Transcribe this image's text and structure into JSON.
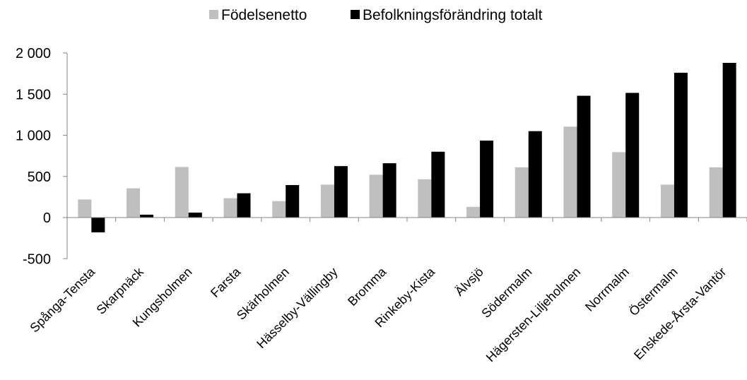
{
  "chart_data": {
    "type": "bar",
    "categories": [
      "Spånga-Tensta",
      "Skarpnäck",
      "Kungsholmen",
      "Farsta",
      "Skärholmen",
      "Hässelby-Vällingby",
      "Bromma",
      "Rinkeby-Kista",
      "Älvsjö",
      "Södermalm",
      "Hägersten-Liljeholmen",
      "Norrmalm",
      "Östermalm",
      "Enskede-Årsta-Vantör"
    ],
    "series": [
      {
        "name": "Födelsenetto",
        "color": "#bfbfbf",
        "values": [
          220,
          355,
          615,
          235,
          200,
          400,
          520,
          465,
          130,
          610,
          1105,
          795,
          400,
          610
        ]
      },
      {
        "name": "Befolkningsförändring totalt",
        "color": "#000000",
        "values": [
          -180,
          35,
          60,
          295,
          395,
          625,
          660,
          800,
          935,
          1050,
          1480,
          1515,
          1760,
          1880
        ]
      }
    ],
    "yaxis": {
      "ticks": [
        "2 000",
        "1 500",
        "1 000",
        "500",
        "0",
        "-500"
      ],
      "tick_values": [
        2000,
        1500,
        1000,
        500,
        0,
        -500
      ]
    },
    "ylim": [
      -500,
      2000
    ],
    "legend_position": "top",
    "grid": false
  }
}
